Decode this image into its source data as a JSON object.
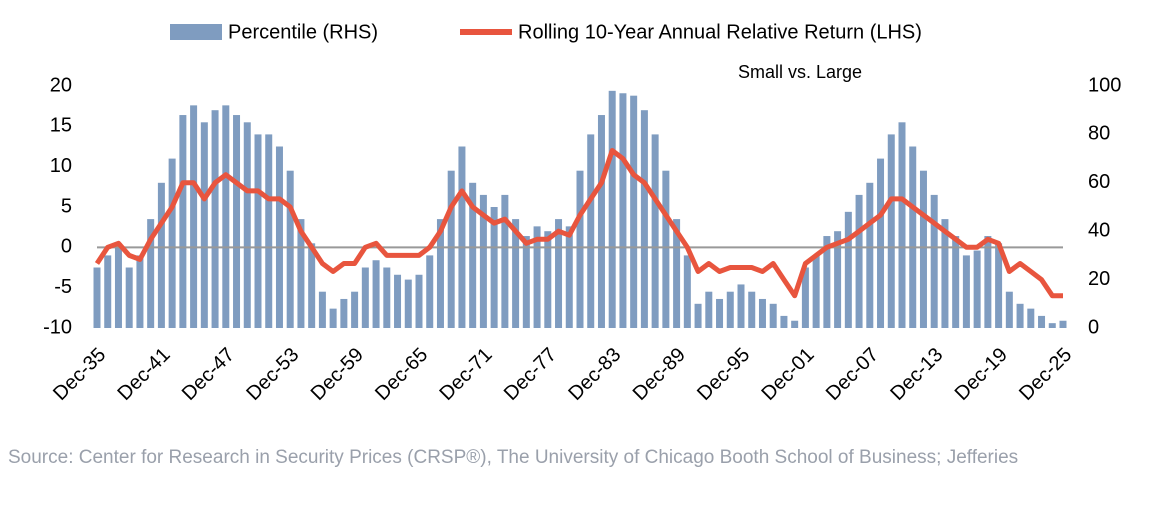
{
  "chart_data": {
    "type": "combo",
    "annotation": "Small vs. Large",
    "source": "Source: Center for Research in Security Prices (CRSP®), The University of Chicago Booth School of Business; Jefferies",
    "categories": [
      "Dec-35",
      null,
      null,
      null,
      null,
      null,
      "Dec-41",
      null,
      null,
      null,
      null,
      null,
      "Dec-47",
      null,
      null,
      null,
      null,
      null,
      "Dec-53",
      null,
      null,
      null,
      null,
      null,
      "Dec-59",
      null,
      null,
      null,
      null,
      null,
      "Dec-65",
      null,
      null,
      null,
      null,
      null,
      "Dec-71",
      null,
      null,
      null,
      null,
      null,
      "Dec-77",
      null,
      null,
      null,
      null,
      null,
      "Dec-83",
      null,
      null,
      null,
      null,
      null,
      "Dec-89",
      null,
      null,
      null,
      null,
      null,
      "Dec-95",
      null,
      null,
      null,
      null,
      null,
      "Dec-01",
      null,
      null,
      null,
      null,
      null,
      "Dec-07",
      null,
      null,
      null,
      null,
      null,
      "Dec-13",
      null,
      null,
      null,
      null,
      null,
      "Dec-19",
      null,
      null,
      null,
      null,
      null,
      "Dec-25"
    ],
    "series": [
      {
        "name": "Percentile (RHS)",
        "type": "bar",
        "axis": "y2",
        "color": "#7f9cc0",
        "values": [
          25,
          30,
          35,
          25,
          30,
          45,
          60,
          70,
          88,
          92,
          85,
          90,
          92,
          88,
          85,
          80,
          80,
          75,
          65,
          45,
          35,
          15,
          8,
          12,
          15,
          25,
          28,
          25,
          22,
          20,
          22,
          30,
          45,
          65,
          75,
          60,
          55,
          50,
          55,
          45,
          38,
          42,
          40,
          45,
          42,
          65,
          80,
          88,
          98,
          97,
          96,
          90,
          80,
          65,
          45,
          30,
          10,
          15,
          12,
          15,
          18,
          15,
          12,
          10,
          5,
          3,
          25,
          30,
          38,
          40,
          48,
          55,
          60,
          70,
          80,
          85,
          75,
          65,
          55,
          45,
          38,
          30,
          32,
          38,
          35,
          15,
          10,
          8,
          5,
          2,
          3
        ]
      },
      {
        "name": "Rolling 10-Year Annual Relative Return (LHS)",
        "type": "line",
        "color": "#e8553e",
        "values": [
          -2,
          0,
          0.5,
          -1,
          -1.5,
          1,
          3,
          5,
          8,
          8,
          6,
          8,
          9,
          8,
          7,
          7,
          6,
          6,
          5,
          2,
          0,
          -2,
          -3,
          -2,
          -2,
          0,
          0.5,
          -1,
          -1,
          -1,
          -1,
          0,
          2,
          5,
          7,
          5,
          4,
          3,
          3.5,
          2,
          0.5,
          1,
          1,
          2,
          1.5,
          4,
          6,
          8,
          12,
          11,
          9,
          8,
          6,
          4,
          2,
          0,
          -3,
          -2,
          -3,
          -2.5,
          -2.5,
          -2.5,
          -3,
          -2,
          -4,
          -6,
          -2,
          -1,
          0,
          0.5,
          1,
          2,
          3,
          4,
          6,
          6,
          5,
          4,
          3,
          2,
          1,
          0,
          0,
          1,
          0.5,
          -3,
          -2,
          -3,
          -4,
          -6,
          -6
        ]
      }
    ],
    "ylim": [
      -10,
      20
    ],
    "yticks": [
      -10,
      -5,
      0,
      5,
      10,
      15,
      20
    ],
    "y2lim": [
      0,
      100
    ],
    "y2ticks": [
      0,
      20,
      40,
      60,
      80,
      100
    ]
  }
}
